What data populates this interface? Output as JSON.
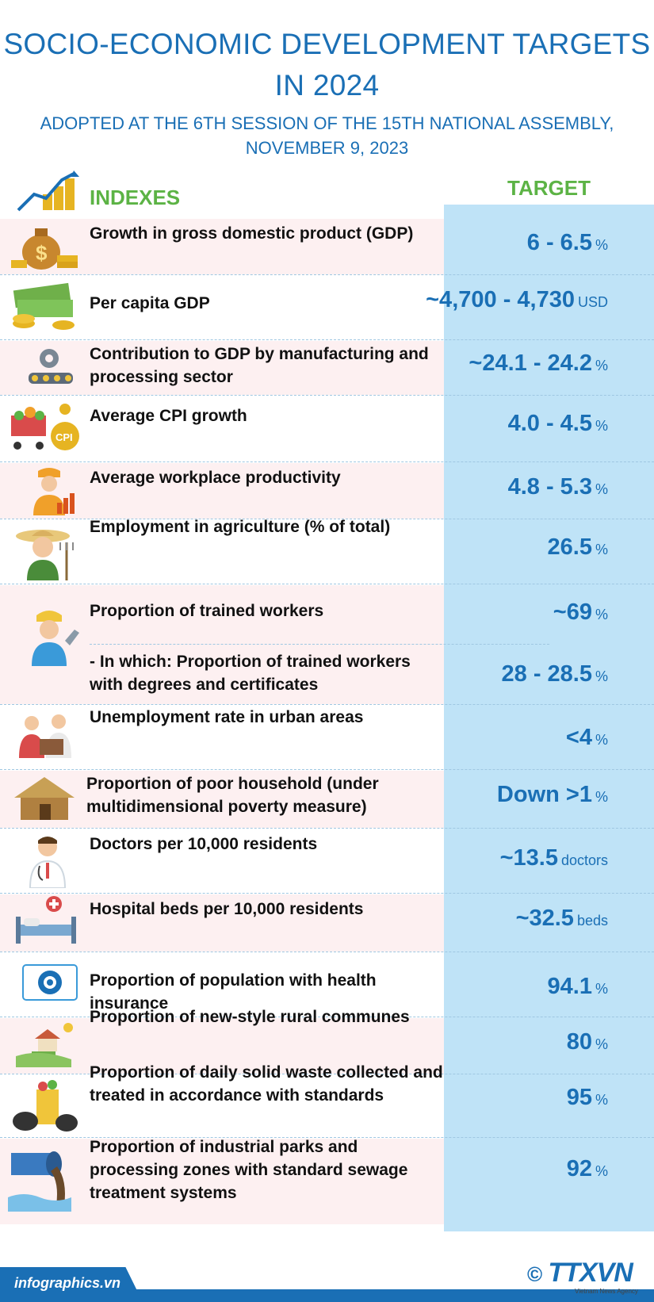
{
  "header": {
    "title": "SOCIO-ECONOMIC DEVELOPMENT TARGETS IN 2024",
    "title_line1": "SOCIO-ECONOMIC DEVELOPMENT TARGETS",
    "title_line2": "IN 2024",
    "subtitle_line1": "ADOPTED AT THE 6TH SESSION OF THE 15TH NATIONAL ASSEMBLY,",
    "subtitle_line2": "NOVEMBER 9, 2023"
  },
  "columns": {
    "indexes": "INDEXES",
    "target": "TARGET"
  },
  "rows": [
    {
      "label": "Growth in gross domestic product (GDP)",
      "value": "6 - 6.5",
      "unit": "%",
      "icon": "money-bag-icon"
    },
    {
      "label": "Per capita GDP",
      "value": "~4,700 - 4,730",
      "unit": "USD",
      "icon": "cash-stack-icon"
    },
    {
      "label": "Contribution to GDP by manufacturing and processing sector",
      "value": "~24.1 - 24.2",
      "unit": "%",
      "icon": "factory-gear-icon"
    },
    {
      "label": "Average CPI growth",
      "value": "4.0 - 4.5",
      "unit": "%",
      "icon": "shopping-cart-cpi-icon"
    },
    {
      "label": "Average workplace productivity",
      "value": "4.8 - 5.3",
      "unit": "%",
      "icon": "worker-chart-icon"
    },
    {
      "label": "Employment in agriculture (% of total)",
      "value": "26.5",
      "unit": "%",
      "icon": "farmer-icon"
    },
    {
      "label": "Proportion of trained workers",
      "value": "~69",
      "unit": "%",
      "icon": "trained-worker-icon"
    },
    {
      "label": "- In which: Proportion of trained workers with degrees and certificates",
      "value": "28 - 28.5",
      "unit": "%",
      "icon": ""
    },
    {
      "label": "Unemployment rate in urban areas",
      "value": "<4",
      "unit": "%",
      "icon": "unemployed-people-icon"
    },
    {
      "label": "Proportion of poor household (under multidimensional poverty measure)",
      "value": "Down >1",
      "unit": "%",
      "icon": "hut-icon"
    },
    {
      "label": "Doctors per 10,000 residents",
      "value": "~13.5",
      "unit": "doctors",
      "icon": "doctor-icon"
    },
    {
      "label": "Hospital beds per 10,000 residents",
      "value": "~32.5",
      "unit": "beds",
      "icon": "hospital-bed-icon"
    },
    {
      "label": "Proportion of population with health insurance",
      "value": "94.1",
      "unit": "%",
      "icon": "health-insurance-icon"
    },
    {
      "label": "Proportion of new-style rural communes",
      "value": "80",
      "unit": "%",
      "icon": "rural-house-icon"
    },
    {
      "label": "Proportion of daily solid waste collected and treated in accordance with standards",
      "value": "95",
      "unit": "%",
      "icon": "waste-bin-icon"
    },
    {
      "label": "Proportion of industrial parks and processing zones with standard sewage treatment systems",
      "value": "92",
      "unit": "%",
      "icon": "sewage-pipe-icon"
    }
  ],
  "footer": {
    "site": "infographics.vn",
    "copyright": "©",
    "agency": "TTXVN",
    "agency_sub": "Vietnam News Agency"
  },
  "colors": {
    "title": "#1a6fb5",
    "header_green": "#5cb345",
    "target_bg": "#bfe3f7",
    "pink_row": "#fdf0f1"
  }
}
